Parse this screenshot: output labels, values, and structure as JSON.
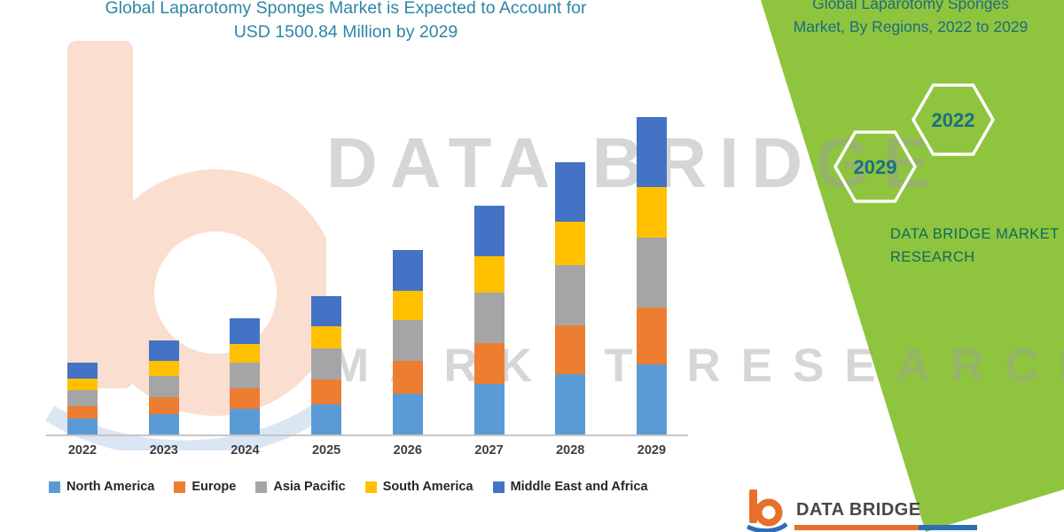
{
  "left_title": {
    "line1": "Global Laparotomy Sponges Market is Expected to Account for",
    "line2": "USD 1500.84 Million by 2029"
  },
  "panel": {
    "green_color": "#8fc43e",
    "title_line1": "Global Laparotomy Sponges",
    "title_line2": "Market, By Regions, 2022 to 2029",
    "hexagons": [
      {
        "label": "2029"
      },
      {
        "label": "2022"
      }
    ],
    "brand_line1": "DATA BRIDGE MARKET",
    "brand_line2": "RESEARCH"
  },
  "watermark": {
    "line1": "DATA BRIDGE",
    "line2": "MARKET RESEARCH",
    "logo_icon": "data-bridge-b-watermark"
  },
  "footer_logo": {
    "icon": "data-bridge-b-logo",
    "text": "DATA BRIDGE",
    "accent_orange": "#e8702a",
    "accent_blue": "#2e6db4"
  },
  "chart_data": {
    "type": "bar",
    "stacked": true,
    "title": "Global Laparotomy Sponges Market is Expected to Account for USD 1500.84 Million by 2029",
    "xlabel": "",
    "ylabel": "",
    "ylim": [
      0,
      1550
    ],
    "grid": false,
    "legend_position": "bottom",
    "categories": [
      "2022",
      "2023",
      "2024",
      "2025",
      "2026",
      "2027",
      "2028",
      "2029"
    ],
    "series": [
      {
        "name": "North America",
        "color": "#5B9BD5",
        "values": [
          75,
          98,
          121,
          144,
          191,
          238,
          284,
          330
        ]
      },
      {
        "name": "Europe",
        "color": "#ED7D31",
        "values": [
          61,
          80,
          99,
          118,
          157,
          194,
          232,
          270
        ]
      },
      {
        "name": "Asia Pacific",
        "color": "#A5A5A5",
        "values": [
          75,
          98,
          121,
          144,
          191,
          238,
          284,
          330
        ]
      },
      {
        "name": "South America",
        "color": "#FFC000",
        "values": [
          54,
          71,
          88,
          105,
          139,
          173,
          206,
          240
        ]
      },
      {
        "name": "Middle East and Africa",
        "color": "#4472C4",
        "values": [
          75,
          98,
          121,
          144,
          192,
          237,
          284,
          330.84
        ]
      }
    ],
    "totals": [
      340,
      445,
      550,
      655,
      870,
      1080,
      1290,
      1500.84
    ]
  }
}
